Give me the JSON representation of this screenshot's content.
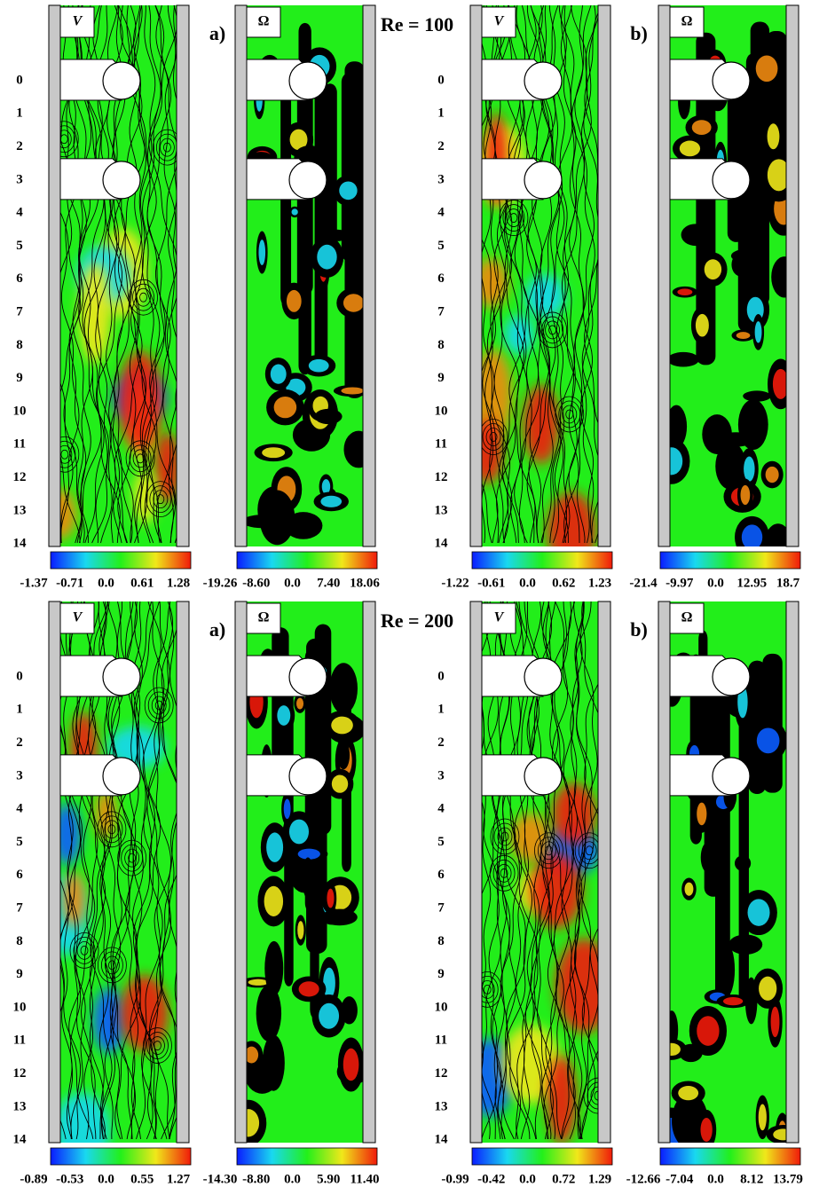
{
  "figure": {
    "y_axis_labels": [
      "0",
      "1",
      "2",
      "3",
      "4",
      "5",
      "6",
      "7",
      "8",
      "9",
      "10",
      "11",
      "12",
      "13",
      "14"
    ],
    "rows": [
      {
        "re_label": "Re = 100",
        "panels": [
          {
            "field": "V",
            "tag": "a)",
            "colorbar_labels": [
              "-1.37",
              "-0.71",
              "0.0",
              "0.61",
              "1.28"
            ]
          },
          {
            "field": "Ω",
            "colorbar_labels": [
              "-19.26",
              "-8.60",
              "0.0",
              "7.40",
              "18.06"
            ]
          },
          {
            "field": "V",
            "tag": "b)",
            "colorbar_labels": [
              "-1.22",
              "-0.61",
              "0.0",
              "0.62",
              "1.23"
            ]
          },
          {
            "field": "Ω",
            "colorbar_labels": [
              "-21.4",
              "-9.97",
              "0.0",
              "12.95",
              "18.7"
            ]
          }
        ]
      },
      {
        "re_label": "Re = 200",
        "panels": [
          {
            "field": "V",
            "tag": "a)",
            "colorbar_labels": [
              "-0.89",
              "-0.53",
              "0.0",
              "0.55",
              "1.27"
            ]
          },
          {
            "field": "Ω",
            "colorbar_labels": [
              "-14.30",
              "-8.80",
              "0.0",
              "5.90",
              "11.40"
            ]
          },
          {
            "field": "V",
            "tag": "b)",
            "colorbar_labels": [
              "-0.99",
              "-0.42",
              "0.0",
              "0.72",
              "1.29"
            ]
          },
          {
            "field": "Ω",
            "colorbar_labels": [
              "-12.66",
              "-7.04",
              "0.0",
              "8.12",
              "13.79"
            ]
          }
        ]
      }
    ]
  }
}
